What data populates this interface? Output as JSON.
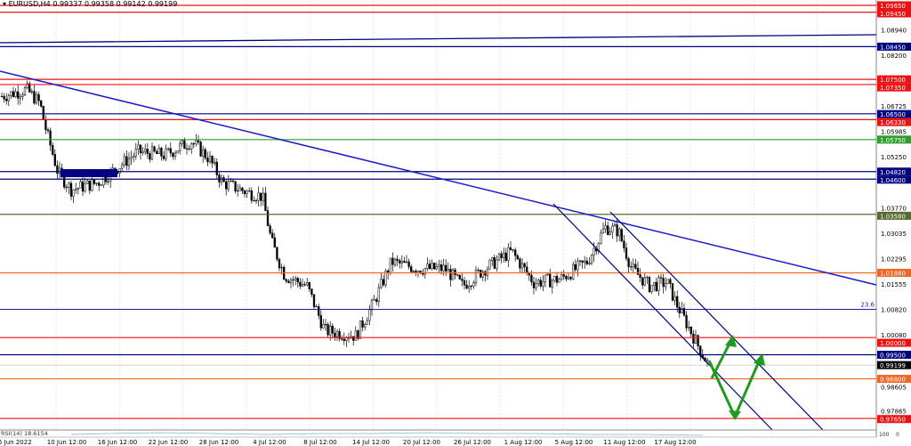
{
  "header": {
    "symbol_info": "EURUSD,H4",
    "ohlc": "0.99337 0.99358 0.99142 0.99199",
    "menu_icon": "triangle-down-icon"
  },
  "price_axis": {
    "ticks": [
      "1.08940",
      "1.08200",
      "1.06725",
      "1.05985",
      "1.05250",
      "1.03770",
      "1.03035",
      "1.02295",
      "1.01555",
      "1.00820",
      "1.00080",
      "0.98605",
      "0.97865"
    ]
  },
  "levels": [
    {
      "label": "1.09650",
      "price": 1.0965,
      "color": "#ee1111"
    },
    {
      "label": "1.09450",
      "price": 1.0945,
      "color": "#ee1111"
    },
    {
      "label": "1.08450",
      "price": 1.0845,
      "color": "#000080"
    },
    {
      "label": "1.07500",
      "price": 1.075,
      "color": "#ee1111"
    },
    {
      "label": "1.07350",
      "price": 1.0735,
      "color": "#ee1111"
    },
    {
      "label": "1.06500",
      "price": 1.065,
      "color": "#000080"
    },
    {
      "label": "1.06330",
      "price": 1.0633,
      "color": "#ee1111"
    },
    {
      "label": "1.05750",
      "price": 1.0575,
      "color": "#2e9e2e"
    },
    {
      "label": "1.04820",
      "price": 1.0482,
      "color": "#000080"
    },
    {
      "label": "1.04600",
      "price": 1.046,
      "color": "#000080"
    },
    {
      "label": "1.03580",
      "price": 1.0358,
      "color": "#556b2f"
    },
    {
      "label": "1.01880",
      "price": 1.0188,
      "color": "#f26522"
    },
    {
      "label": "1.00000",
      "price": 1.0,
      "color": "#ee1111"
    },
    {
      "label": "0.99500",
      "price": 0.995,
      "color": "#000080"
    },
    {
      "label": "0.98800",
      "price": 0.988,
      "color": "#f26522"
    },
    {
      "label": "0.97650",
      "price": 0.9765,
      "color": "#ee1111"
    }
  ],
  "current_price": {
    "label": "0.99199",
    "price": 0.99199,
    "color": "#000000"
  },
  "fibo": {
    "label": "23.6",
    "price": 1.0082
  },
  "time_axis": [
    "5 Jun 2022",
    "10 Jun 12:00",
    "16 Jun 12:00",
    "22 Jun 12:00",
    "28 Jun 12:00",
    "4 Jul 12:00",
    "8 Jul 12:00",
    "14 Jul 12:00",
    "20 Jul 12:00",
    "26 Jul 12:00",
    "1 Aug 12:00",
    "5 Aug 12:00",
    "11 Aug 12:00",
    "17 Aug 12:00"
  ],
  "indicator": {
    "label": "RSI(14) 18.6154",
    "max": "100",
    "min": "0"
  },
  "colors": {
    "trendline": "#1a1acc",
    "channel": "#000080",
    "arrow": "#1f9a1f",
    "grid": "#d8d8d8"
  }
}
